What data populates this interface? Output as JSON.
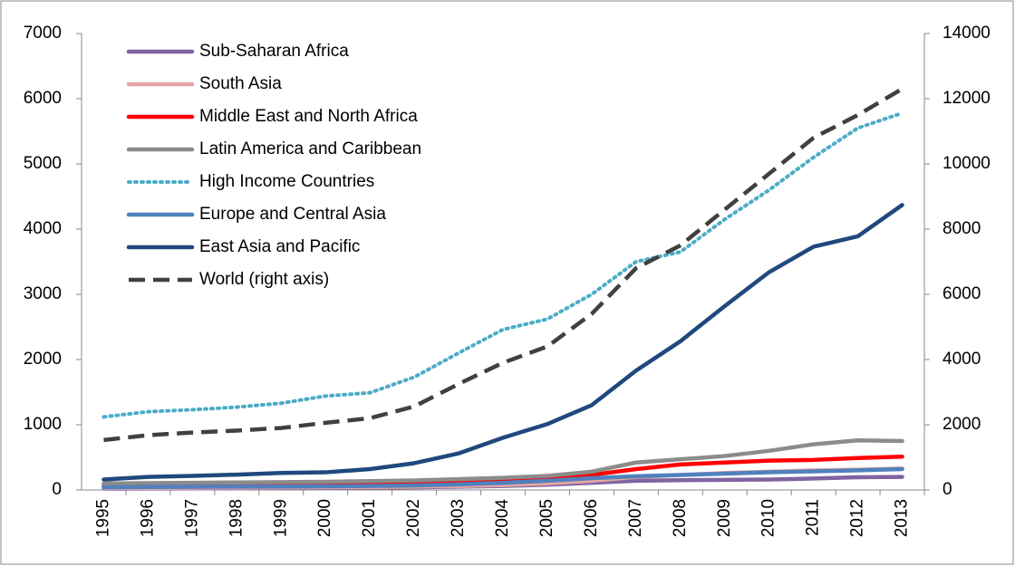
{
  "chart_data": {
    "type": "line",
    "categories": [
      "1995",
      "1996",
      "1997",
      "1998",
      "1999",
      "2000",
      "2001",
      "2002",
      "2003",
      "2004",
      "2005",
      "2006",
      "2007",
      "2008",
      "2009",
      "2010",
      "2011",
      "2012",
      "2013"
    ],
    "series": [
      {
        "name": "Sub-Saharan Africa",
        "color": "#8064a2",
        "style": "solid",
        "values": [
          20,
          22,
          25,
          27,
          30,
          32,
          35,
          40,
          50,
          60,
          80,
          110,
          140,
          150,
          155,
          160,
          175,
          195,
          200
        ]
      },
      {
        "name": "South Asia",
        "color": "#e6a5a3",
        "style": "solid",
        "values": [
          30,
          32,
          35,
          37,
          40,
          42,
          45,
          50,
          60,
          75,
          100,
          140,
          200,
          230,
          260,
          280,
          300,
          310,
          330
        ]
      },
      {
        "name": "Middle East and North Africa",
        "color": "#ff0000",
        "style": "solid",
        "values": [
          60,
          65,
          70,
          72,
          75,
          80,
          85,
          95,
          110,
          130,
          170,
          230,
          320,
          390,
          420,
          450,
          460,
          490,
          510
        ]
      },
      {
        "name": "Latin America and Caribbean",
        "color": "#8c8c8c",
        "style": "solid",
        "values": [
          100,
          105,
          110,
          115,
          120,
          125,
          135,
          145,
          165,
          185,
          215,
          280,
          420,
          470,
          520,
          600,
          700,
          760,
          750
        ]
      },
      {
        "name": "High Income Countries",
        "color": "#4bacc6",
        "style": "dotted",
        "values": [
          1120,
          1200,
          1230,
          1270,
          1330,
          1440,
          1490,
          1730,
          2100,
          2460,
          2620,
          3000,
          3500,
          3650,
          4150,
          4600,
          5100,
          5550,
          5780
        ]
      },
      {
        "name": "Europe and Central Asia",
        "color": "#4f81bd",
        "style": "solid",
        "values": [
          40,
          45,
          48,
          50,
          52,
          55,
          60,
          70,
          85,
          110,
          140,
          180,
          210,
          230,
          250,
          270,
          285,
          300,
          320
        ]
      },
      {
        "name": "East Asia and Pacific",
        "color": "#1f497d",
        "style": "solid",
        "values": [
          160,
          200,
          215,
          235,
          260,
          270,
          320,
          410,
          560,
          800,
          1010,
          1300,
          1830,
          2280,
          2820,
          3340,
          3730,
          3890,
          4370
        ]
      },
      {
        "name": "World (right axis)",
        "color": "#404040",
        "style": "dashed",
        "axis": "y2",
        "values": [
          1530,
          1680,
          1760,
          1820,
          1900,
          2060,
          2200,
          2560,
          3250,
          3900,
          4400,
          5400,
          6800,
          7500,
          8600,
          9700,
          10800,
          11500,
          12300
        ]
      }
    ],
    "ylim": [
      0,
      7000
    ],
    "yticks": [
      0,
      1000,
      2000,
      3000,
      4000,
      5000,
      6000,
      7000
    ],
    "y2lim": [
      0,
      14000
    ],
    "y2ticks": [
      0,
      2000,
      4000,
      6000,
      8000,
      10000,
      12000,
      14000
    ],
    "legend": "upper-left"
  }
}
